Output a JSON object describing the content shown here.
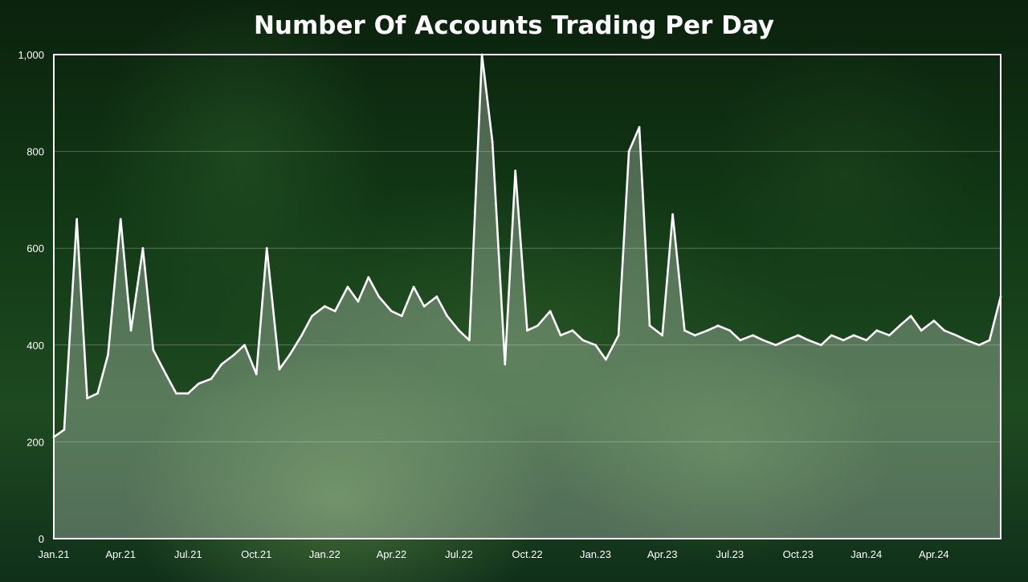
{
  "chart_data": {
    "type": "area",
    "title": "Number Of Accounts Trading Per Day",
    "xlabel": "",
    "ylabel": "",
    "ylim": [
      0,
      1000
    ],
    "yticks": [
      "0",
      "200",
      "400",
      "600",
      "800",
      "1,000"
    ],
    "ytick_values": [
      0,
      200,
      400,
      600,
      800,
      1000
    ],
    "x_start": "2021-01-01",
    "x_end": "2024-06-30",
    "xticks": [
      "Jan.21",
      "Apr.21",
      "Jul.21",
      "Oct.21",
      "Jan.22",
      "Apr.22",
      "Jul.22",
      "Oct.22",
      "Jan.23",
      "Apr.23",
      "Jul.23",
      "Oct.23",
      "Jan.24",
      "Apr.24"
    ],
    "xtick_dates": [
      "2021-01-01",
      "2021-04-01",
      "2021-07-01",
      "2021-10-01",
      "2022-01-01",
      "2022-04-01",
      "2022-07-01",
      "2022-10-01",
      "2023-01-01",
      "2023-04-01",
      "2023-07-01",
      "2023-10-01",
      "2024-01-01",
      "2024-04-01"
    ],
    "grid": true,
    "legend": "none",
    "series": [
      {
        "x": [
          "2021-01-01",
          "2021-01-15",
          "2021-02-01",
          "2021-02-15",
          "2021-03-01",
          "2021-03-15",
          "2021-04-01",
          "2021-04-15",
          "2021-05-01",
          "2021-05-15",
          "2021-06-01",
          "2021-06-15",
          "2021-07-01",
          "2021-07-15",
          "2021-08-01",
          "2021-08-15",
          "2021-09-01",
          "2021-09-15",
          "2021-10-01",
          "2021-10-15",
          "2021-11-01",
          "2021-11-15",
          "2021-12-01",
          "2021-12-15",
          "2022-01-01",
          "2022-01-15",
          "2022-02-01",
          "2022-02-15",
          "2022-03-01",
          "2022-03-15",
          "2022-04-01",
          "2022-04-15",
          "2022-05-01",
          "2022-05-15",
          "2022-06-01",
          "2022-06-15",
          "2022-07-01",
          "2022-07-15",
          "2022-08-01",
          "2022-08-15",
          "2022-09-01",
          "2022-09-15",
          "2022-10-01",
          "2022-10-15",
          "2022-11-01",
          "2022-11-15",
          "2022-12-01",
          "2022-12-15",
          "2023-01-01",
          "2023-01-15",
          "2023-02-01",
          "2023-02-15",
          "2023-03-01",
          "2023-03-15",
          "2023-04-01",
          "2023-04-15",
          "2023-05-01",
          "2023-05-15",
          "2023-06-01",
          "2023-06-15",
          "2023-07-01",
          "2023-07-15",
          "2023-08-01",
          "2023-08-15",
          "2023-09-01",
          "2023-09-15",
          "2023-10-01",
          "2023-10-15",
          "2023-11-01",
          "2023-11-15",
          "2023-12-01",
          "2023-12-15",
          "2024-01-01",
          "2024-01-15",
          "2024-02-01",
          "2024-02-15",
          "2024-03-01",
          "2024-03-15",
          "2024-04-01",
          "2024-04-15",
          "2024-05-01",
          "2024-05-15",
          "2024-06-01",
          "2024-06-15",
          "2024-06-30"
        ],
        "values": [
          210,
          225,
          660,
          290,
          300,
          380,
          660,
          430,
          600,
          390,
          340,
          300,
          300,
          320,
          330,
          360,
          380,
          400,
          340,
          600,
          350,
          380,
          420,
          460,
          480,
          470,
          520,
          490,
          540,
          500,
          470,
          460,
          520,
          480,
          500,
          460,
          430,
          410,
          1000,
          820,
          360,
          760,
          430,
          440,
          470,
          420,
          430,
          410,
          400,
          370,
          420,
          800,
          850,
          440,
          420,
          670,
          430,
          420,
          430,
          440,
          430,
          410,
          420,
          410,
          400,
          410,
          420,
          410,
          400,
          420,
          410,
          420,
          410,
          430,
          420,
          440,
          460,
          430,
          450,
          430,
          420,
          410,
          400,
          410,
          500
        ]
      }
    ]
  }
}
